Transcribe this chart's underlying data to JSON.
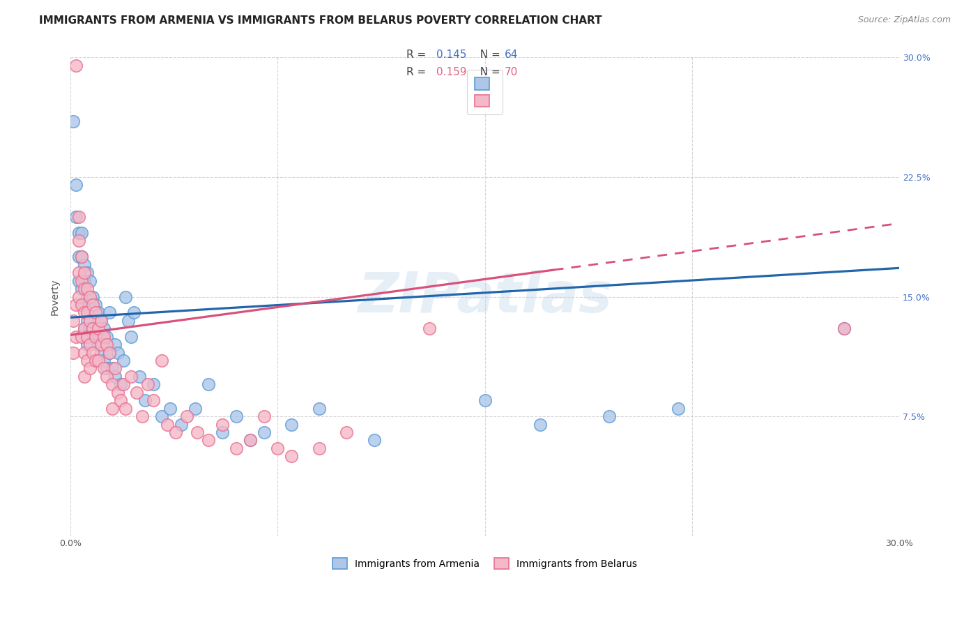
{
  "title": "IMMIGRANTS FROM ARMENIA VS IMMIGRANTS FROM BELARUS POVERTY CORRELATION CHART",
  "source": "Source: ZipAtlas.com",
  "ylabel": "Poverty",
  "xlim": [
    0.0,
    0.3
  ],
  "ylim": [
    0.0,
    0.3
  ],
  "xticks": [
    0.0,
    0.075,
    0.15,
    0.225,
    0.3
  ],
  "yticks": [
    0.0,
    0.075,
    0.15,
    0.225,
    0.3
  ],
  "xticklabels": [
    "0.0%",
    "",
    "",
    "",
    "30.0%"
  ],
  "yticklabels_right": [
    "",
    "7.5%",
    "15.0%",
    "22.5%",
    "30.0%"
  ],
  "armenia_color": "#aec6e8",
  "armenia_edge": "#5b9bd5",
  "belarus_color": "#f4b8c8",
  "belarus_edge": "#e87090",
  "legend_R_armenia": "0.145",
  "legend_N_armenia": "64",
  "legend_R_belarus": "0.159",
  "legend_N_belarus": "70",
  "title_fontsize": 11,
  "source_fontsize": 9,
  "axis_label_fontsize": 10,
  "tick_fontsize": 9,
  "legend_fontsize": 11,
  "watermark": "ZIPatlas",
  "armenia_line_x": [
    0.0,
    0.3
  ],
  "armenia_line_y": [
    0.137,
    0.168
  ],
  "belarus_line_x": [
    0.0,
    0.3
  ],
  "belarus_line_y": [
    0.126,
    0.196
  ],
  "belarus_dash_split": 0.175,
  "armenia_x": [
    0.001,
    0.002,
    0.002,
    0.003,
    0.003,
    0.003,
    0.004,
    0.004,
    0.004,
    0.005,
    0.005,
    0.005,
    0.005,
    0.006,
    0.006,
    0.006,
    0.006,
    0.007,
    0.007,
    0.007,
    0.008,
    0.008,
    0.009,
    0.009,
    0.01,
    0.01,
    0.011,
    0.011,
    0.012,
    0.012,
    0.013,
    0.013,
    0.014,
    0.014,
    0.015,
    0.016,
    0.016,
    0.017,
    0.018,
    0.019,
    0.02,
    0.021,
    0.022,
    0.023,
    0.025,
    0.027,
    0.03,
    0.033,
    0.036,
    0.04,
    0.045,
    0.05,
    0.055,
    0.06,
    0.065,
    0.07,
    0.08,
    0.09,
    0.11,
    0.15,
    0.17,
    0.195,
    0.22,
    0.28
  ],
  "armenia_y": [
    0.26,
    0.22,
    0.2,
    0.19,
    0.175,
    0.16,
    0.19,
    0.175,
    0.155,
    0.17,
    0.16,
    0.145,
    0.13,
    0.165,
    0.15,
    0.135,
    0.12,
    0.16,
    0.145,
    0.13,
    0.15,
    0.13,
    0.145,
    0.125,
    0.14,
    0.12,
    0.135,
    0.115,
    0.13,
    0.11,
    0.125,
    0.105,
    0.14,
    0.115,
    0.105,
    0.12,
    0.1,
    0.115,
    0.095,
    0.11,
    0.15,
    0.135,
    0.125,
    0.14,
    0.1,
    0.085,
    0.095,
    0.075,
    0.08,
    0.07,
    0.08,
    0.095,
    0.065,
    0.075,
    0.06,
    0.065,
    0.07,
    0.08,
    0.06,
    0.085,
    0.07,
    0.075,
    0.08,
    0.13
  ],
  "belarus_x": [
    0.001,
    0.001,
    0.002,
    0.002,
    0.002,
    0.003,
    0.003,
    0.003,
    0.003,
    0.004,
    0.004,
    0.004,
    0.004,
    0.005,
    0.005,
    0.005,
    0.005,
    0.005,
    0.005,
    0.006,
    0.006,
    0.006,
    0.006,
    0.007,
    0.007,
    0.007,
    0.007,
    0.008,
    0.008,
    0.008,
    0.009,
    0.009,
    0.009,
    0.01,
    0.01,
    0.011,
    0.011,
    0.012,
    0.012,
    0.013,
    0.013,
    0.014,
    0.015,
    0.015,
    0.016,
    0.017,
    0.018,
    0.019,
    0.02,
    0.022,
    0.024,
    0.026,
    0.028,
    0.03,
    0.033,
    0.035,
    0.038,
    0.042,
    0.046,
    0.05,
    0.055,
    0.06,
    0.065,
    0.07,
    0.075,
    0.08,
    0.09,
    0.1,
    0.13,
    0.28
  ],
  "belarus_y": [
    0.135,
    0.115,
    0.295,
    0.145,
    0.125,
    0.2,
    0.185,
    0.165,
    0.15,
    0.175,
    0.16,
    0.145,
    0.125,
    0.165,
    0.155,
    0.14,
    0.13,
    0.115,
    0.1,
    0.155,
    0.14,
    0.125,
    0.11,
    0.15,
    0.135,
    0.12,
    0.105,
    0.145,
    0.13,
    0.115,
    0.14,
    0.125,
    0.11,
    0.13,
    0.11,
    0.135,
    0.12,
    0.125,
    0.105,
    0.12,
    0.1,
    0.115,
    0.095,
    0.08,
    0.105,
    0.09,
    0.085,
    0.095,
    0.08,
    0.1,
    0.09,
    0.075,
    0.095,
    0.085,
    0.11,
    0.07,
    0.065,
    0.075,
    0.065,
    0.06,
    0.07,
    0.055,
    0.06,
    0.075,
    0.055,
    0.05,
    0.055,
    0.065,
    0.13,
    0.13
  ]
}
